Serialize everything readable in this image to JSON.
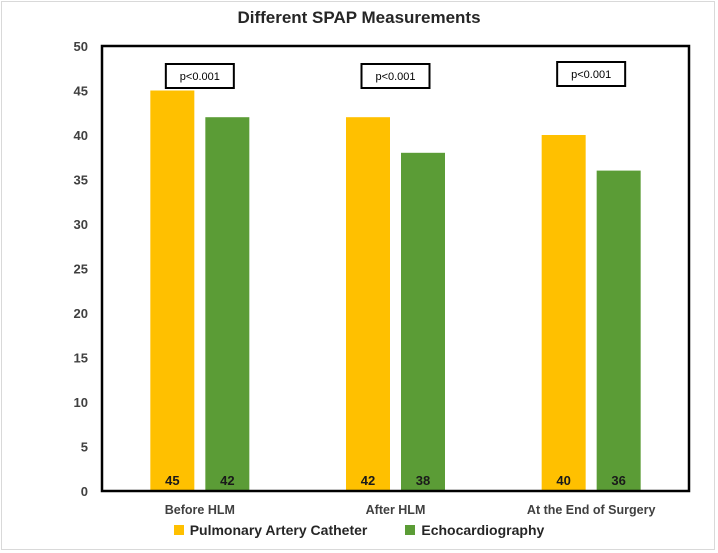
{
  "chart_data": {
    "type": "bar",
    "title": "Different SPAP Measurements",
    "xlabel": "",
    "ylabel": "",
    "ylim": [
      0,
      50
    ],
    "yticks": [
      0,
      5,
      10,
      15,
      20,
      25,
      30,
      35,
      40,
      45,
      50
    ],
    "grid": false,
    "legend_position": "bottom",
    "categories": [
      "Before HLM",
      "After HLM",
      "At the End of Surgery"
    ],
    "series": [
      {
        "name": "Pulmonary Artery Catheter",
        "color": "#ffc000",
        "values": [
          45,
          42,
          40
        ]
      },
      {
        "name": "Echocardiography",
        "color": "#5b9c36",
        "values": [
          42,
          38,
          36
        ]
      }
    ],
    "annotations": [
      "p<0.001",
      "p<0.001",
      "p<0.001"
    ]
  }
}
